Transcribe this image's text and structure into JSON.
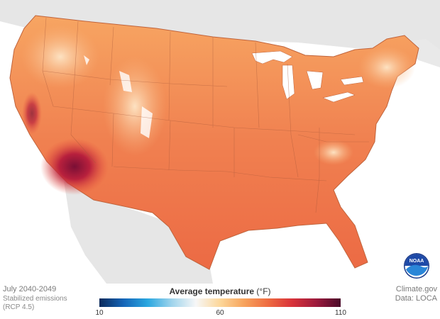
{
  "period": "July 2040-2049",
  "scenario_line1": "Stabilized emissions",
  "scenario_line2": "(RCP 4.5)",
  "credit_line1": "Climate.gov",
  "credit_line2": "Data: LOCA",
  "legend": {
    "title": "Average temperature",
    "unit": "(°F)",
    "min_label": "10",
    "mid_label": "60",
    "max_label": "110",
    "min": 10,
    "mid": 60,
    "max": 110
  },
  "logo_text": "NOAA",
  "colors": {
    "ocean": "#ffffff",
    "neighbor_land": "#e6e6e6",
    "warm": "#f0764a",
    "cool": "#f7b27a",
    "hot": "#9c1a3c",
    "state_border": "#b0603a",
    "scale": [
      "#0b2a5b",
      "#1565b8",
      "#2aa7e0",
      "#9fd4ec",
      "#f7f7f7",
      "#fcd79a",
      "#f7a35c",
      "#ee6b41",
      "#d8323a",
      "#9c1a3c",
      "#4a0a2a"
    ]
  }
}
